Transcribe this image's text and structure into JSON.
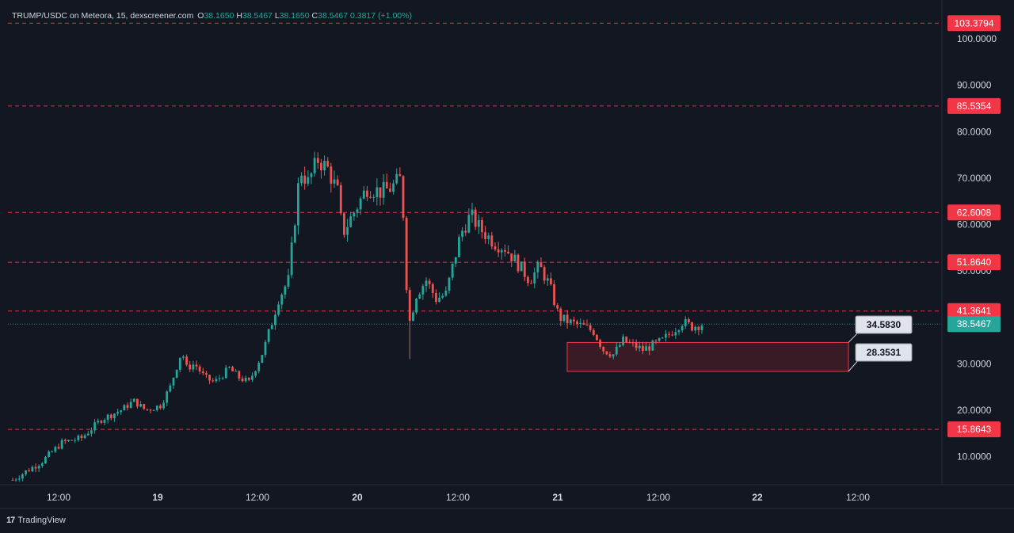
{
  "header": {
    "symbol": "TRUMP/USDC on Meteora, 15, dexscreener.com",
    "open_label": "O",
    "open_value": "38.1650",
    "high_label": "H",
    "high_value": "38.5467",
    "low_label": "L",
    "low_value": "38.1650",
    "close_label": "C",
    "close_value": "38.5467",
    "change": "0.3817 (+1.00%)"
  },
  "footer": {
    "brand": "TradingView"
  },
  "colors": {
    "background": "#131722",
    "up": "#26a69a",
    "down": "#ef5350",
    "level": "#f23645",
    "text": "#d1d4dc"
  },
  "chart_data": {
    "type": "candlestick",
    "title": "TRUMP/USDC on Meteora, 15, dexscreener.com",
    "ylim": [
      2,
      105
    ],
    "y_ticks": [
      "10.0000",
      "20.0000",
      "30.0000",
      "40.0000",
      "50.0000",
      "60.0000",
      "70.0000",
      "80.0000",
      "90.0000",
      "100.0000"
    ],
    "x_ticks": [
      "12:00",
      "19",
      "12:00",
      "20",
      "12:00",
      "21",
      "12:00",
      "22",
      "12:00"
    ],
    "grid": false,
    "horizontal_levels": [
      {
        "value": 103.3794,
        "label": "103.3794"
      },
      {
        "value": 85.5354,
        "label": "85.5354"
      },
      {
        "value": 62.6008,
        "label": "62.6008"
      },
      {
        "value": 51.864,
        "label": "51.8640"
      },
      {
        "value": 41.3641,
        "label": "41.3641"
      },
      {
        "value": 15.8643,
        "label": "15.8643"
      }
    ],
    "last_price": {
      "value": 38.5467,
      "label": "38.5467"
    },
    "zone": {
      "top": 34.583,
      "bottom": 28.3531,
      "top_label": "34.5830",
      "bottom_label": "28.3531"
    },
    "price_path": [
      [
        0,
        5
      ],
      [
        3,
        9
      ],
      [
        5,
        13
      ],
      [
        7,
        14
      ],
      [
        9,
        18
      ],
      [
        11,
        20
      ],
      [
        12.3,
        22
      ],
      [
        13.5,
        20
      ],
      [
        15,
        21
      ],
      [
        16,
        25
      ],
      [
        17.2,
        33
      ],
      [
        17.6,
        29
      ],
      [
        18.5,
        30
      ],
      [
        19.5,
        27
      ],
      [
        20.5,
        26
      ],
      [
        22,
        29
      ],
      [
        23,
        27
      ],
      [
        24,
        26
      ],
      [
        25.5,
        33
      ],
      [
        26.2,
        38
      ],
      [
        27,
        44
      ],
      [
        28,
        48
      ],
      [
        29.2,
        72
      ],
      [
        30,
        69
      ],
      [
        31,
        74
      ],
      [
        32,
        72
      ],
      [
        33,
        67
      ],
      [
        33.5,
        58
      ],
      [
        34.5,
        62
      ],
      [
        36,
        68
      ],
      [
        37.5,
        67
      ],
      [
        38.5,
        68
      ],
      [
        39.5,
        70
      ],
      [
        40.2,
        38
      ],
      [
        41,
        45
      ],
      [
        42,
        48
      ],
      [
        43,
        44
      ],
      [
        44,
        45
      ],
      [
        45.5,
        58
      ],
      [
        46.5,
        62
      ],
      [
        47.5,
        59
      ],
      [
        49,
        56
      ],
      [
        50,
        55
      ],
      [
        51.5,
        51
      ],
      [
        52.5,
        48
      ],
      [
        53.5,
        51
      ],
      [
        54.5,
        47
      ],
      [
        55.5,
        40
      ],
      [
        56.5,
        39
      ],
      [
        58,
        38
      ],
      [
        59,
        37
      ],
      [
        60,
        33
      ],
      [
        61,
        32
      ],
      [
        62,
        35
      ],
      [
        63,
        34
      ],
      [
        64,
        33
      ],
      [
        65,
        34
      ],
      [
        66,
        35
      ],
      [
        67,
        37
      ],
      [
        68,
        39
      ],
      [
        69,
        38
      ],
      [
        70,
        38.5467
      ]
    ]
  }
}
